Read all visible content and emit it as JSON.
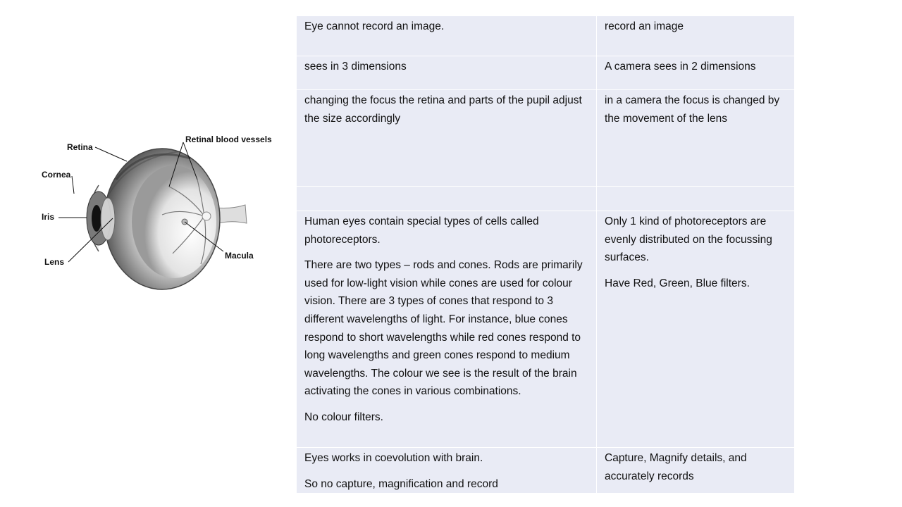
{
  "diagram": {
    "labels": {
      "retina": "Retina",
      "retinal_vessels": "Retinal blood vessels",
      "cornea": "Cornea",
      "iris": "Iris",
      "lens": "Lens",
      "macula": "Macula"
    }
  },
  "table": {
    "rows": [
      {
        "eye": [
          " Eye cannot record an image."
        ],
        "camera": [
          "record an image"
        ]
      },
      {
        "eye": [
          "sees in 3 dimensions"
        ],
        "camera": [
          "A camera sees  in 2 dimensions"
        ]
      },
      {
        "eye": [
          "changing the focus the retina and parts of the pupil adjust the size accordingly"
        ],
        "camera": [
          "in a camera the focus is changed by the movement of the lens"
        ]
      },
      {
        "eye": [],
        "camera": []
      },
      {
        "eye": [
          "Human eyes contain special types of cells called photoreceptors.",
          "There are two types – rods and cones. Rods are primarily used for low-light vision while cones are used for colour vision. There are 3 types of cones that respond to 3 different wavelengths of light. For instance, blue cones respond to short wavelengths while red cones respond to long wavelengths and green cones respond to medium wavelengths. The colour we see is the result of the brain activating the cones in various combinations.",
          "No colour filters."
        ],
        "camera": [
          "Only 1 kind of photoreceptors are evenly distributed on the focussing surfaces.",
          "Have Red, Green, Blue filters."
        ]
      },
      {
        "eye": [
          "Eyes works in coevolution with brain.",
          "So no capture, magnification and record"
        ],
        "camera": [
          "Capture, Magnify details,  and accurately records"
        ]
      }
    ]
  }
}
